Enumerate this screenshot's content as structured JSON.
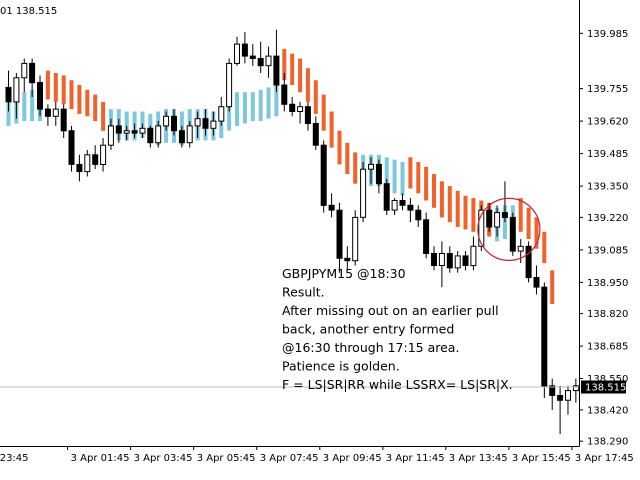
{
  "chart_data": {
    "type": "candlestick",
    "symbol_timeframe": "GBPJPYM15",
    "header_text": "01 138.515",
    "ylim": [
      138.27,
      140.09
    ],
    "y_ticks": [
      "139.985",
      "139.755",
      "139.620",
      "139.485",
      "139.350",
      "139.220",
      "139.085",
      "138.950",
      "138.820",
      "138.685",
      "138.550",
      "138.420",
      "138.290"
    ],
    "x_ticks": [
      {
        "label": "23:45",
        "index": -1.5
      },
      {
        "label": "3 Apr 01:45",
        "index": 7.5
      },
      {
        "label": "3 Apr 03:45",
        "index": 15.5
      },
      {
        "label": "3 Apr 05:45",
        "index": 23.5
      },
      {
        "label": "3 Apr 07:45",
        "index": 31.5
      },
      {
        "label": "3 Apr 09:45",
        "index": 39.5
      },
      {
        "label": "3 Apr 11:45",
        "index": 47.5
      },
      {
        "label": "3 Apr 13:45",
        "index": 55.5
      },
      {
        "label": "3 Apr 15:45",
        "index": 63.5
      },
      {
        "label": "3 Apr 17:45",
        "index": 71.5
      }
    ],
    "current_price": "138.515",
    "current_price_value": 138.515,
    "candles": [
      {
        "o": 139.76,
        "h": 139.83,
        "l": 139.66,
        "c": 139.7
      },
      {
        "o": 139.7,
        "h": 139.82,
        "l": 139.63,
        "c": 139.8
      },
      {
        "o": 139.8,
        "h": 139.88,
        "l": 139.74,
        "c": 139.86
      },
      {
        "o": 139.86,
        "h": 139.88,
        "l": 139.72,
        "c": 139.78
      },
      {
        "o": 139.78,
        "h": 139.81,
        "l": 139.64,
        "c": 139.67
      },
      {
        "o": 139.67,
        "h": 139.69,
        "l": 139.6,
        "c": 139.64
      },
      {
        "o": 139.64,
        "h": 139.7,
        "l": 139.6,
        "c": 139.67
      },
      {
        "o": 139.67,
        "h": 139.69,
        "l": 139.55,
        "c": 139.58
      },
      {
        "o": 139.58,
        "h": 139.6,
        "l": 139.41,
        "c": 139.44
      },
      {
        "o": 139.44,
        "h": 139.48,
        "l": 139.37,
        "c": 139.41
      },
      {
        "o": 139.41,
        "h": 139.5,
        "l": 139.39,
        "c": 139.48
      },
      {
        "o": 139.48,
        "h": 139.52,
        "l": 139.42,
        "c": 139.44
      },
      {
        "o": 139.44,
        "h": 139.55,
        "l": 139.41,
        "c": 139.52
      },
      {
        "o": 139.52,
        "h": 139.63,
        "l": 139.5,
        "c": 139.6
      },
      {
        "o": 139.6,
        "h": 139.63,
        "l": 139.53,
        "c": 139.57
      },
      {
        "o": 139.57,
        "h": 139.6,
        "l": 139.54,
        "c": 139.58
      },
      {
        "o": 139.58,
        "h": 139.61,
        "l": 139.55,
        "c": 139.57
      },
      {
        "o": 139.57,
        "h": 139.61,
        "l": 139.55,
        "c": 139.59
      },
      {
        "o": 139.59,
        "h": 139.6,
        "l": 139.51,
        "c": 139.53
      },
      {
        "o": 139.53,
        "h": 139.62,
        "l": 139.51,
        "c": 139.6
      },
      {
        "o": 139.6,
        "h": 139.66,
        "l": 139.58,
        "c": 139.64
      },
      {
        "o": 139.64,
        "h": 139.67,
        "l": 139.56,
        "c": 139.58
      },
      {
        "o": 139.58,
        "h": 139.6,
        "l": 139.51,
        "c": 139.53
      },
      {
        "o": 139.53,
        "h": 139.62,
        "l": 139.51,
        "c": 139.6
      },
      {
        "o": 139.6,
        "h": 139.66,
        "l": 139.55,
        "c": 139.63
      },
      {
        "o": 139.63,
        "h": 139.67,
        "l": 139.56,
        "c": 139.59
      },
      {
        "o": 139.59,
        "h": 139.66,
        "l": 139.56,
        "c": 139.62
      },
      {
        "o": 139.62,
        "h": 139.72,
        "l": 139.6,
        "c": 139.68
      },
      {
        "o": 139.68,
        "h": 139.88,
        "l": 139.66,
        "c": 139.86
      },
      {
        "o": 139.86,
        "h": 139.97,
        "l": 139.85,
        "c": 139.94
      },
      {
        "o": 139.94,
        "h": 139.99,
        "l": 139.86,
        "c": 139.89
      },
      {
        "o": 139.89,
        "h": 139.94,
        "l": 139.85,
        "c": 139.88
      },
      {
        "o": 139.88,
        "h": 139.95,
        "l": 139.82,
        "c": 139.85
      },
      {
        "o": 139.85,
        "h": 139.93,
        "l": 139.8,
        "c": 139.89
      },
      {
        "o": 139.89,
        "h": 140.0,
        "l": 139.74,
        "c": 139.77
      },
      {
        "o": 139.77,
        "h": 139.82,
        "l": 139.66,
        "c": 139.69
      },
      {
        "o": 139.69,
        "h": 139.72,
        "l": 139.64,
        "c": 139.66
      },
      {
        "o": 139.66,
        "h": 139.7,
        "l": 139.61,
        "c": 139.68
      },
      {
        "o": 139.68,
        "h": 139.7,
        "l": 139.58,
        "c": 139.61
      },
      {
        "o": 139.61,
        "h": 139.64,
        "l": 139.5,
        "c": 139.52
      },
      {
        "o": 139.52,
        "h": 139.54,
        "l": 139.24,
        "c": 139.27
      },
      {
        "o": 139.27,
        "h": 139.32,
        "l": 139.22,
        "c": 139.25
      },
      {
        "o": 139.25,
        "h": 139.28,
        "l": 138.99,
        "c": 139.05
      },
      {
        "o": 139.05,
        "h": 139.1,
        "l": 139.0,
        "c": 139.04
      },
      {
        "o": 139.04,
        "h": 139.25,
        "l": 139.02,
        "c": 139.22
      },
      {
        "o": 139.22,
        "h": 139.45,
        "l": 139.2,
        "c": 139.42
      },
      {
        "o": 139.42,
        "h": 139.47,
        "l": 139.36,
        "c": 139.44
      },
      {
        "o": 139.44,
        "h": 139.46,
        "l": 139.32,
        "c": 139.36
      },
      {
        "o": 139.36,
        "h": 139.38,
        "l": 139.23,
        "c": 139.25
      },
      {
        "o": 139.25,
        "h": 139.3,
        "l": 139.23,
        "c": 139.29
      },
      {
        "o": 139.29,
        "h": 139.32,
        "l": 139.25,
        "c": 139.27
      },
      {
        "o": 139.27,
        "h": 139.3,
        "l": 139.2,
        "c": 139.25
      },
      {
        "o": 139.25,
        "h": 139.27,
        "l": 139.18,
        "c": 139.21
      },
      {
        "o": 139.21,
        "h": 139.24,
        "l": 139.05,
        "c": 139.07
      },
      {
        "o": 139.07,
        "h": 139.1,
        "l": 139.0,
        "c": 139.02
      },
      {
        "o": 139.02,
        "h": 139.12,
        "l": 138.93,
        "c": 139.07
      },
      {
        "o": 139.07,
        "h": 139.1,
        "l": 138.99,
        "c": 139.01
      },
      {
        "o": 139.01,
        "h": 139.08,
        "l": 138.99,
        "c": 139.06
      },
      {
        "o": 139.06,
        "h": 139.08,
        "l": 139.0,
        "c": 139.02
      },
      {
        "o": 139.02,
        "h": 139.14,
        "l": 139.0,
        "c": 139.1
      },
      {
        "o": 139.1,
        "h": 139.27,
        "l": 139.08,
        "c": 139.25
      },
      {
        "o": 139.25,
        "h": 139.28,
        "l": 139.16,
        "c": 139.18
      },
      {
        "o": 139.18,
        "h": 139.27,
        "l": 139.14,
        "c": 139.24
      },
      {
        "o": 139.24,
        "h": 139.37,
        "l": 139.2,
        "c": 139.22
      },
      {
        "o": 139.22,
        "h": 139.24,
        "l": 139.06,
        "c": 139.08
      },
      {
        "o": 139.08,
        "h": 139.13,
        "l": 139.03,
        "c": 139.1
      },
      {
        "o": 139.1,
        "h": 139.12,
        "l": 138.95,
        "c": 138.97
      },
      {
        "o": 138.97,
        "h": 139.02,
        "l": 138.9,
        "c": 138.93
      },
      {
        "o": 138.93,
        "h": 138.95,
        "l": 138.47,
        "c": 138.52
      },
      {
        "o": 138.52,
        "h": 138.55,
        "l": 138.42,
        "c": 138.48
      },
      {
        "o": 138.48,
        "h": 138.52,
        "l": 138.32,
        "c": 138.46
      },
      {
        "o": 138.46,
        "h": 138.52,
        "l": 138.4,
        "c": 138.5
      },
      {
        "o": 138.5,
        "h": 138.55,
        "l": 138.45,
        "c": 138.52
      }
    ],
    "trend_bars": [
      {
        "hi": 139.72,
        "lo": 139.6,
        "dir": "up"
      },
      {
        "hi": 139.73,
        "lo": 139.61,
        "dir": "up"
      },
      {
        "hi": 139.74,
        "lo": 139.62,
        "dir": "up"
      },
      {
        "hi": 139.75,
        "lo": 139.62,
        "dir": "up"
      },
      {
        "hi": 139.74,
        "lo": 139.62,
        "dir": "up"
      },
      {
        "hi": 139.83,
        "lo": 139.71,
        "dir": "down"
      },
      {
        "hi": 139.82,
        "lo": 139.7,
        "dir": "down"
      },
      {
        "hi": 139.81,
        "lo": 139.69,
        "dir": "down"
      },
      {
        "hi": 139.79,
        "lo": 139.67,
        "dir": "down"
      },
      {
        "hi": 139.77,
        "lo": 139.65,
        "dir": "down"
      },
      {
        "hi": 139.75,
        "lo": 139.64,
        "dir": "down"
      },
      {
        "hi": 139.73,
        "lo": 139.62,
        "dir": "down"
      },
      {
        "hi": 139.7,
        "lo": 139.58,
        "dir": "down"
      },
      {
        "hi": 139.67,
        "lo": 139.53,
        "dir": "up"
      },
      {
        "hi": 139.67,
        "lo": 139.54,
        "dir": "up"
      },
      {
        "hi": 139.66,
        "lo": 139.54,
        "dir": "up"
      },
      {
        "hi": 139.66,
        "lo": 139.54,
        "dir": "up"
      },
      {
        "hi": 139.66,
        "lo": 139.55,
        "dir": "up"
      },
      {
        "hi": 139.65,
        "lo": 139.53,
        "dir": "up"
      },
      {
        "hi": 139.66,
        "lo": 139.52,
        "dir": "up"
      },
      {
        "hi": 139.67,
        "lo": 139.53,
        "dir": "up"
      },
      {
        "hi": 139.67,
        "lo": 139.53,
        "dir": "up"
      },
      {
        "hi": 139.66,
        "lo": 139.52,
        "dir": "up"
      },
      {
        "hi": 139.67,
        "lo": 139.53,
        "dir": "up"
      },
      {
        "hi": 139.67,
        "lo": 139.54,
        "dir": "up"
      },
      {
        "hi": 139.67,
        "lo": 139.54,
        "dir": "up"
      },
      {
        "hi": 139.66,
        "lo": 139.54,
        "dir": "up"
      },
      {
        "hi": 139.68,
        "lo": 139.55,
        "dir": "up"
      },
      {
        "hi": 139.72,
        "lo": 139.58,
        "dir": "up"
      },
      {
        "hi": 139.74,
        "lo": 139.6,
        "dir": "up"
      },
      {
        "hi": 139.74,
        "lo": 139.61,
        "dir": "up"
      },
      {
        "hi": 139.74,
        "lo": 139.62,
        "dir": "up"
      },
      {
        "hi": 139.75,
        "lo": 139.62,
        "dir": "up"
      },
      {
        "hi": 139.76,
        "lo": 139.63,
        "dir": "up"
      },
      {
        "hi": 139.78,
        "lo": 139.64,
        "dir": "up"
      },
      {
        "hi": 139.92,
        "lo": 139.79,
        "dir": "down"
      },
      {
        "hi": 139.9,
        "lo": 139.77,
        "dir": "down"
      },
      {
        "hi": 139.88,
        "lo": 139.74,
        "dir": "down"
      },
      {
        "hi": 139.84,
        "lo": 139.7,
        "dir": "down"
      },
      {
        "hi": 139.79,
        "lo": 139.65,
        "dir": "down"
      },
      {
        "hi": 139.73,
        "lo": 139.58,
        "dir": "down"
      },
      {
        "hi": 139.66,
        "lo": 139.51,
        "dir": "down"
      },
      {
        "hi": 139.58,
        "lo": 139.44,
        "dir": "down"
      },
      {
        "hi": 139.53,
        "lo": 139.4,
        "dir": "down"
      },
      {
        "hi": 139.49,
        "lo": 139.36,
        "dir": "down"
      },
      {
        "hi": 139.48,
        "lo": 139.35,
        "dir": "up"
      },
      {
        "hi": 139.48,
        "lo": 139.35,
        "dir": "up"
      },
      {
        "hi": 139.48,
        "lo": 139.35,
        "dir": "up"
      },
      {
        "hi": 139.47,
        "lo": 139.33,
        "dir": "up"
      },
      {
        "hi": 139.46,
        "lo": 139.32,
        "dir": "up"
      },
      {
        "hi": 139.45,
        "lo": 139.31,
        "dir": "up"
      },
      {
        "hi": 139.47,
        "lo": 139.34,
        "dir": "down"
      },
      {
        "hi": 139.45,
        "lo": 139.32,
        "dir": "down"
      },
      {
        "hi": 139.43,
        "lo": 139.29,
        "dir": "down"
      },
      {
        "hi": 139.4,
        "lo": 139.26,
        "dir": "down"
      },
      {
        "hi": 139.37,
        "lo": 139.22,
        "dir": "down"
      },
      {
        "hi": 139.35,
        "lo": 139.2,
        "dir": "down"
      },
      {
        "hi": 139.33,
        "lo": 139.18,
        "dir": "down"
      },
      {
        "hi": 139.31,
        "lo": 139.17,
        "dir": "down"
      },
      {
        "hi": 139.3,
        "lo": 139.16,
        "dir": "down"
      },
      {
        "hi": 139.29,
        "lo": 139.15,
        "dir": "down"
      },
      {
        "hi": 139.28,
        "lo": 139.14,
        "dir": "down"
      },
      {
        "hi": 139.26,
        "lo": 139.12,
        "dir": "up"
      },
      {
        "hi": 139.27,
        "lo": 139.13,
        "dir": "up"
      },
      {
        "hi": 139.27,
        "lo": 139.13,
        "dir": "up"
      },
      {
        "hi": 139.3,
        "lo": 139.16,
        "dir": "down"
      },
      {
        "hi": 139.26,
        "lo": 139.13,
        "dir": "down"
      },
      {
        "hi": 139.22,
        "lo": 139.09,
        "dir": "down"
      },
      {
        "hi": 139.16,
        "lo": 139.03,
        "dir": "down"
      },
      {
        "hi": 139.0,
        "lo": 138.86,
        "dir": "down"
      }
    ],
    "annotation_circle": {
      "index_center": 63.5,
      "price_center": 139.17
    }
  },
  "note": {
    "lines": [
      "GBPJPYM15 @18:30",
      "Result.",
      "After missing out on an earlier pull",
      "back, another entry  formed",
      "@16:30  through 17:15 area.",
      "Patience is golden.",
      "F = LS|SR|RR while LSSRX= LS|SR|X."
    ]
  },
  "colors": {
    "background": "#ffffff",
    "candle": "#000000",
    "trend_up": "#7ec8dc",
    "trend_down": "#f0622a",
    "circle": "#cc2233",
    "price_tag": "#000000",
    "current_line": "#bdbdbd",
    "axis": "#000000"
  }
}
